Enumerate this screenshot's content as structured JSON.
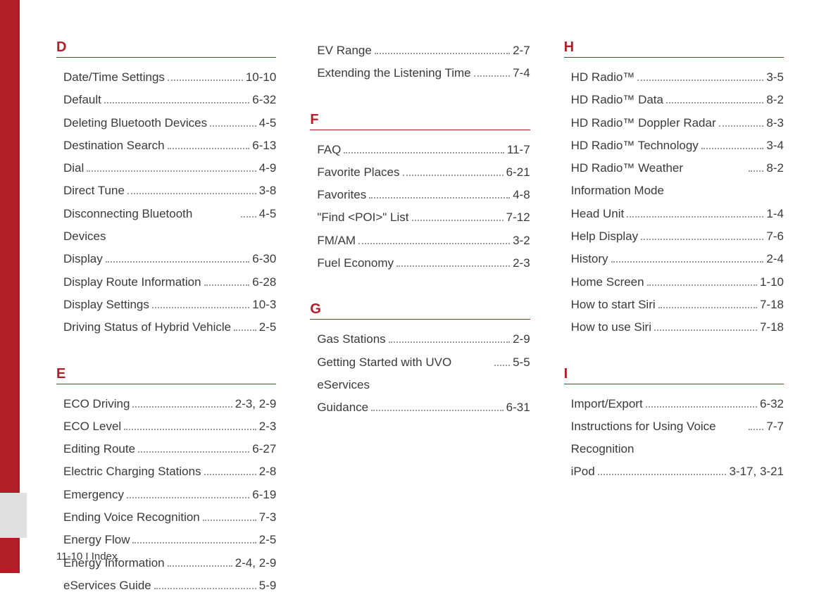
{
  "footer": "11-10 I Index",
  "columns": [
    {
      "sections": [
        {
          "letter": "D",
          "spaced": false,
          "entries": [
            {
              "label": "Date/Time Settings",
              "page": "10-10"
            },
            {
              "label": "Default",
              "page": "6-32"
            },
            {
              "label": "Deleting Bluetooth Devices",
              "page": "4-5"
            },
            {
              "label": "Destination Search",
              "page": "6-13"
            },
            {
              "label": "Dial",
              "page": "4-9"
            },
            {
              "label": "Direct Tune",
              "page": "3-8"
            },
            {
              "label": "Disconnecting Bluetooth Devices",
              "page": "4-5"
            },
            {
              "label": "Display",
              "page": "6-30"
            },
            {
              "label": "Display Route Information",
              "page": "6-28"
            },
            {
              "label": "Display Settings",
              "page": "10-3"
            },
            {
              "label": "Driving Status of Hybrid Vehicle",
              "page": "2-5"
            }
          ]
        },
        {
          "letter": "E",
          "spaced": true,
          "entries": [
            {
              "label": "ECO Driving",
              "page": "2-3, 2-9"
            },
            {
              "label": "ECO Level",
              "page": "2-3"
            },
            {
              "label": "Editing Route",
              "page": "6-27"
            },
            {
              "label": "Electric Charging Stations",
              "page": "2-8"
            },
            {
              "label": "Emergency",
              "page": "6-19"
            },
            {
              "label": "Ending Voice Recognition",
              "page": "7-3"
            },
            {
              "label": "Energy Flow",
              "page": "2-5"
            },
            {
              "label": "Energy Information",
              "page": "2-4, 2-9"
            },
            {
              "label": "eServices Guide",
              "page": "5-9"
            }
          ]
        }
      ]
    },
    {
      "sections": [
        {
          "letter": "",
          "spaced": false,
          "entries": [
            {
              "label": "EV Range",
              "page": "2-7"
            },
            {
              "label": "Extending the Listening Time",
              "page": "7-4"
            }
          ]
        },
        {
          "letter": "F",
          "spaced": true,
          "entries": [
            {
              "label": "FAQ",
              "page": "11-7"
            },
            {
              "label": "Favorite Places",
              "page": "6-21"
            },
            {
              "label": "Favorites",
              "page": "4-8"
            },
            {
              "label": "\"Find <POI>\" List",
              "page": "7-12"
            },
            {
              "label": "FM/AM",
              "page": "3-2"
            },
            {
              "label": "Fuel Economy",
              "page": "2-3"
            }
          ]
        },
        {
          "letter": "G",
          "spaced": true,
          "entries": [
            {
              "label": "Gas Stations",
              "page": "2-9"
            },
            {
              "label": "Getting Started with UVO eServices",
              "page": "5-5"
            },
            {
              "label": "Guidance",
              "page": "6-31"
            }
          ]
        }
      ]
    },
    {
      "sections": [
        {
          "letter": "H",
          "spaced": false,
          "entries": [
            {
              "label": "HD Radio™",
              "page": "3-5"
            },
            {
              "label": "HD Radio™ Data",
              "page": "8-2"
            },
            {
              "label": "HD Radio™ Doppler Radar",
              "page": "8-3"
            },
            {
              "label": "HD Radio™ Technology",
              "page": "3-4"
            },
            {
              "label": "HD Radio™ Weather Information Mode",
              "page": "8-2"
            },
            {
              "label": "Head Unit",
              "page": "1-4"
            },
            {
              "label": "Help Display",
              "page": "7-6"
            },
            {
              "label": "History",
              "page": "2-4"
            },
            {
              "label": "Home Screen",
              "page": "1-10"
            },
            {
              "label": "How to start Siri",
              "page": "7-18"
            },
            {
              "label": "How to use Siri",
              "page": "7-18"
            }
          ]
        },
        {
          "letter": "I",
          "spaced": true,
          "entries": [
            {
              "label": "Import/Export",
              "page": "6-32"
            },
            {
              "label": "Instructions for Using Voice Recognition",
              "page": "7-7"
            },
            {
              "label": "iPod",
              "page": "3-17, 3-21"
            }
          ]
        }
      ]
    }
  ]
}
